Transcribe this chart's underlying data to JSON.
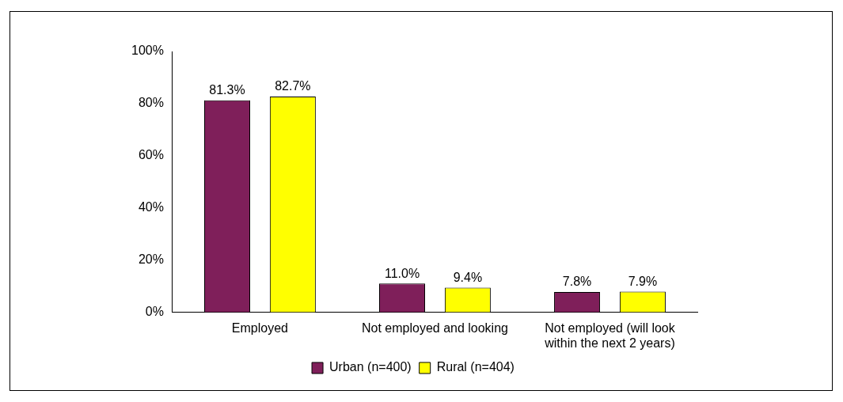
{
  "chart_data": {
    "type": "bar",
    "categories": [
      "Employed",
      "Not employed and looking",
      "Not employed (will look within the next 2 years)"
    ],
    "series": [
      {
        "name": "Urban (n=400)",
        "color": "#7f1f5a",
        "values": [
          81.3,
          11.0,
          7.8
        ],
        "value_labels": [
          "81.3%",
          "11.0%",
          "7.8%"
        ]
      },
      {
        "name": "Rural (n=404)",
        "color": "#ffff00",
        "values": [
          82.7,
          9.4,
          7.9
        ],
        "value_labels": [
          "82.7%",
          "9.4%",
          "7.9%"
        ]
      }
    ],
    "ylim": [
      0,
      100
    ],
    "yticks": [
      {
        "value": 0,
        "label": "0%"
      },
      {
        "value": 20,
        "label": "20%"
      },
      {
        "value": 40,
        "label": "40%"
      },
      {
        "value": 60,
        "label": "60%"
      },
      {
        "value": 80,
        "label": "80%"
      },
      {
        "value": 100,
        "label": "100%"
      }
    ],
    "grid": false,
    "legend": "bottom"
  }
}
